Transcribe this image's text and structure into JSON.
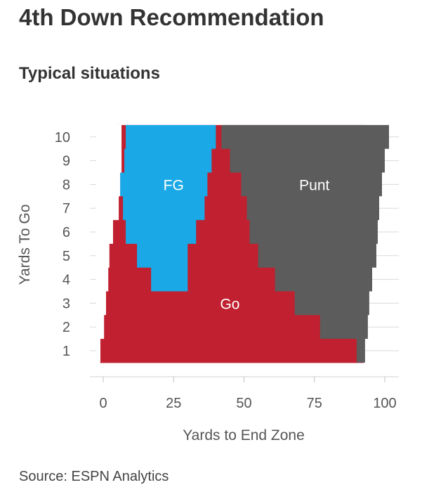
{
  "header": {
    "title": "4th Down Recommendation",
    "subtitle": "Typical situations"
  },
  "footer": {
    "source": "Source: ESPN Analytics"
  },
  "chart_data": {
    "type": "area",
    "title": "Typical situations",
    "xlabel": "Yards to End Zone",
    "ylabel": "Yards To Go",
    "xlim": [
      0,
      100
    ],
    "ylim": [
      1,
      10
    ],
    "x_ticks": [
      0,
      25,
      50,
      75,
      100
    ],
    "y_ticks": [
      1,
      2,
      3,
      4,
      5,
      6,
      7,
      8,
      9,
      10
    ],
    "grid": "horizontal",
    "colors": {
      "Go": "#c0202f",
      "FG": "#1aa9e6",
      "Punt": "#5c5c5c"
    },
    "series": [
      {
        "name": "FG",
        "yards_to_go": [
          10,
          9,
          8,
          7,
          6,
          5,
          4
        ],
        "x_start": [
          8,
          7.5,
          6,
          7,
          8,
          12,
          17
        ],
        "x_end": [
          40,
          38.5,
          37,
          36,
          33,
          30,
          30
        ]
      },
      {
        "name": "Punt",
        "yards_to_go": [
          10,
          9,
          8,
          7,
          6,
          5,
          4,
          3,
          2,
          1
        ],
        "x_start": [
          42,
          45,
          49,
          51,
          52,
          55,
          61,
          68,
          77,
          90
        ],
        "x_end": [
          101.5,
          100,
          99,
          98,
          97.5,
          97,
          95.5,
          94.5,
          94,
          93
        ]
      }
    ],
    "labels": [
      {
        "text": "FG",
        "x": 25,
        "y": 8
      },
      {
        "text": "Punt",
        "x": 75,
        "y": 8
      },
      {
        "text": "Go",
        "x": 45,
        "y": 3
      }
    ]
  }
}
